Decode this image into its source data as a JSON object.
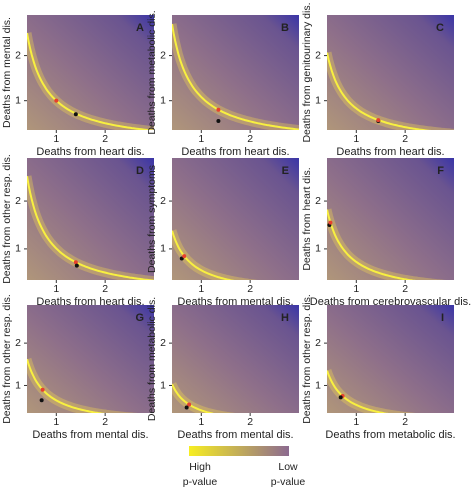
{
  "chart_data": [
    {
      "type": "heatmap",
      "title": "A",
      "x_label": "Deaths from heart dis.",
      "y_label": "Deaths from mental dis.",
      "xlim": [
        0.4,
        3
      ],
      "ylim": [
        0.35,
        2.9
      ],
      "xticks": [
        1,
        2
      ],
      "yticks": [
        1,
        2
      ],
      "points": [
        {
          "color": "#e8412c",
          "x": 1.0,
          "y": 1.0
        },
        {
          "color": "#111111",
          "x": 1.4,
          "y": 0.7
        }
      ]
    },
    {
      "type": "heatmap",
      "title": "B",
      "x_label": "Deaths from heart dis.",
      "y_label": "Deaths from metabolic dis.",
      "xlim": [
        0.4,
        3
      ],
      "ylim": [
        0.35,
        2.9
      ],
      "xticks": [
        1,
        2
      ],
      "yticks": [
        1,
        2
      ],
      "points": [
        {
          "color": "#e8412c",
          "x": 1.35,
          "y": 0.8
        },
        {
          "color": "#111111",
          "x": 1.35,
          "y": 0.55
        }
      ]
    },
    {
      "type": "heatmap",
      "title": "C",
      "x_label": "Deaths from heart dis.",
      "y_label": "Deaths from genitourinary dis.",
      "xlim": [
        0.4,
        3
      ],
      "ylim": [
        0.35,
        2.9
      ],
      "xticks": [
        1,
        2
      ],
      "yticks": [
        1,
        2
      ],
      "points": [
        {
          "color": "#111111",
          "x": 1.45,
          "y": 0.55
        },
        {
          "color": "#e8412c",
          "x": 1.45,
          "y": 0.57
        }
      ]
    },
    {
      "type": "heatmap",
      "title": "D",
      "x_label": "Deaths from heart dis.",
      "y_label": "Deaths from other resp. dis.",
      "xlim": [
        0.4,
        3
      ],
      "ylim": [
        0.35,
        2.9
      ],
      "xticks": [
        1,
        2
      ],
      "yticks": [
        1,
        2
      ],
      "points": [
        {
          "color": "#e8412c",
          "x": 1.4,
          "y": 0.72
        },
        {
          "color": "#111111",
          "x": 1.42,
          "y": 0.65
        }
      ]
    },
    {
      "type": "heatmap",
      "title": "E",
      "x_label": "Deaths from mental dis.",
      "y_label": "Deaths from symptoms",
      "xlim": [
        0.4,
        3
      ],
      "ylim": [
        0.35,
        2.9
      ],
      "xticks": [
        1,
        2
      ],
      "yticks": [
        1,
        2
      ],
      "points": [
        {
          "color": "#111111",
          "x": 0.6,
          "y": 0.8
        },
        {
          "color": "#e8412c",
          "x": 0.65,
          "y": 0.85
        }
      ]
    },
    {
      "type": "heatmap",
      "title": "F",
      "x_label": "Deaths from cerebrovascular dis.",
      "y_label": "Deaths from heart dis.",
      "xlim": [
        0.4,
        3
      ],
      "ylim": [
        0.35,
        2.9
      ],
      "xticks": [
        1,
        2
      ],
      "yticks": [
        1,
        2
      ],
      "points": [
        {
          "color": "#111111",
          "x": 0.45,
          "y": 1.5
        },
        {
          "color": "#e8412c",
          "x": 0.47,
          "y": 1.55
        }
      ]
    },
    {
      "type": "heatmap",
      "title": "G",
      "x_label": "Deaths from mental dis.",
      "y_label": "Deaths from other resp. dis.",
      "xlim": [
        0.4,
        3
      ],
      "ylim": [
        0.35,
        2.9
      ],
      "xticks": [
        1,
        2
      ],
      "yticks": [
        1,
        2
      ],
      "points": [
        {
          "color": "#e8412c",
          "x": 0.72,
          "y": 0.9
        },
        {
          "color": "#111111",
          "x": 0.7,
          "y": 0.65
        }
      ]
    },
    {
      "type": "heatmap",
      "title": "H",
      "x_label": "Deaths from mental dis.",
      "y_label": "Deaths from metabolic dis.",
      "xlim": [
        0.4,
        3
      ],
      "ylim": [
        0.35,
        2.9
      ],
      "xticks": [
        1,
        2
      ],
      "yticks": [
        1,
        2
      ],
      "points": [
        {
          "color": "#e8412c",
          "x": 0.75,
          "y": 0.55
        },
        {
          "color": "#111111",
          "x": 0.7,
          "y": 0.48
        }
      ]
    },
    {
      "type": "heatmap",
      "title": "I",
      "x_label": "Deaths from metabolic dis.",
      "y_label": "Deaths from other resp. dis.",
      "xlim": [
        0.4,
        3
      ],
      "ylim": [
        0.35,
        2.9
      ],
      "xticks": [
        1,
        2
      ],
      "yticks": [
        1,
        2
      ],
      "points": [
        {
          "color": "#e8412c",
          "x": 0.72,
          "y": 0.75
        },
        {
          "color": "#111111",
          "x": 0.68,
          "y": 0.72
        }
      ]
    }
  ],
  "colorbar": {
    "high_label": "High\np-value",
    "low_label": "Low\np-value",
    "high_color": "#f7ee22",
    "low_color": "#8c6a90"
  }
}
